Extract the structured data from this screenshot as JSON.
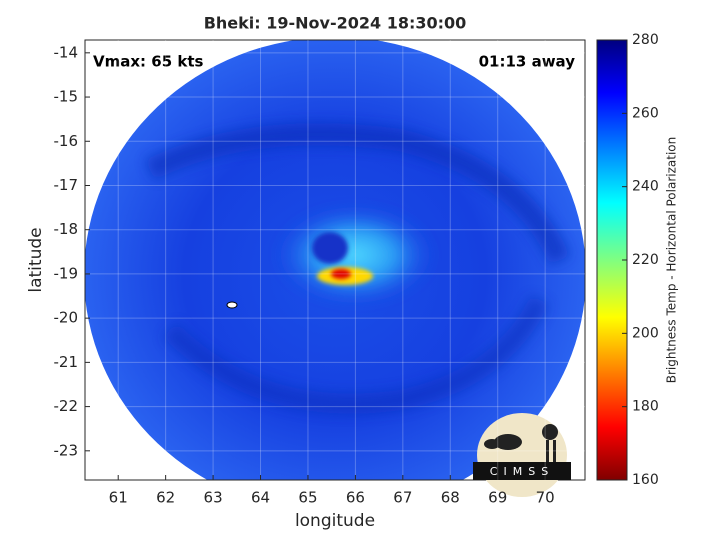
{
  "chart_data": {
    "type": "image",
    "title": "Bheki: 19-Nov-2024 18:30:00",
    "annotations": [
      "Vmax: 65 kts",
      "01:13 away"
    ],
    "xlabel": "longitude",
    "ylabel": "latitude",
    "xlim": [
      60.3,
      70.84
    ],
    "xticks": [
      61,
      62,
      63,
      64,
      65,
      66,
      67,
      68,
      69,
      70
    ],
    "ylim": [
      -23.66,
      -13.71
    ],
    "yticks": [
      -14,
      -15,
      -16,
      -17,
      -18,
      -19,
      -20,
      -21,
      -22,
      -23
    ],
    "grid": true,
    "clabel": "Brightness Temp - Horizontal Polarization",
    "clim": [
      160,
      280
    ],
    "cticks": [
      160,
      180,
      200,
      220,
      240,
      260,
      280
    ],
    "logo": "CIMSS"
  }
}
